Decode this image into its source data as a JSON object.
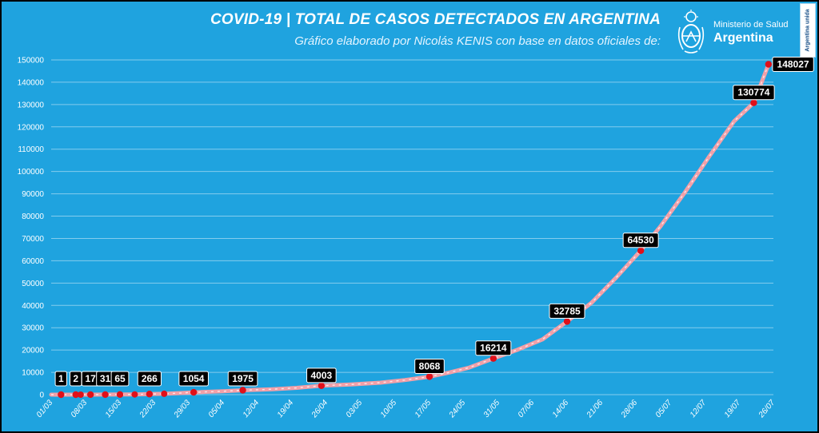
{
  "header": {
    "title": "COVID-19  |  TOTAL DE CASOS DETECTADOS EN ARGENTINA",
    "subtitle": "Gráfico elaborado por Nicolás KENIS con base en datos oficiales de:"
  },
  "logo": {
    "line1": "Ministerio de Salud",
    "line2": "Argentina",
    "icon": "national-coat-of-arms-icon",
    "badge": "Argentina unida"
  },
  "colors": {
    "background": "#1fa3df",
    "line": "#f2a0a8",
    "marker": "#e0101a",
    "label_box": "#000000"
  },
  "chart_data": {
    "type": "line",
    "x_axis": "date",
    "x_tick_labels": [
      "01/03",
      "08/03",
      "15/03",
      "22/03",
      "29/03",
      "05/04",
      "12/04",
      "19/04",
      "26/04",
      "03/05",
      "10/05",
      "17/05",
      "24/05",
      "31/05",
      "07/06",
      "14/06",
      "21/06",
      "28/06",
      "05/07",
      "12/07",
      "19/07",
      "26/07"
    ],
    "y_tick_labels": [
      "0",
      "10000",
      "20000",
      "30000",
      "40000",
      "50000",
      "60000",
      "70000",
      "80000",
      "90000",
      "100000",
      "110000",
      "120000",
      "130000",
      "140000",
      "150000"
    ],
    "ylim": [
      0,
      150000
    ],
    "grid": "horizontal",
    "legend": "none",
    "labeled_points": [
      {
        "date": "03/03",
        "value": 1
      },
      {
        "date": "06/03",
        "value": 2
      },
      {
        "date": "09/03",
        "value": 17
      },
      {
        "date": "12/03",
        "value": 31
      },
      {
        "date": "15/03",
        "value": 65
      },
      {
        "date": "21/03",
        "value": 266
      },
      {
        "date": "30/03",
        "value": 1054
      },
      {
        "date": "09/04",
        "value": 1975
      },
      {
        "date": "25/04",
        "value": 4003
      },
      {
        "date": "17/05",
        "value": 8068
      },
      {
        "date": "30/05",
        "value": 16214
      },
      {
        "date": "14/06",
        "value": 32785
      },
      {
        "date": "29/06",
        "value": 64530
      },
      {
        "date": "22/07",
        "value": 130774
      },
      {
        "date": "25/07",
        "value": 148027
      }
    ],
    "extra_markers": [
      {
        "date": "07/03",
        "value": 5
      },
      {
        "date": "18/03",
        "value": 97
      },
      {
        "date": "24/03",
        "value": 387
      }
    ],
    "series": [
      {
        "values": [
          {
            "date": "01/03",
            "value": 0
          },
          {
            "date": "03/03",
            "value": 1
          },
          {
            "date": "06/03",
            "value": 2
          },
          {
            "date": "07/03",
            "value": 5
          },
          {
            "date": "09/03",
            "value": 17
          },
          {
            "date": "12/03",
            "value": 31
          },
          {
            "date": "15/03",
            "value": 65
          },
          {
            "date": "18/03",
            "value": 97
          },
          {
            "date": "21/03",
            "value": 266
          },
          {
            "date": "24/03",
            "value": 387
          },
          {
            "date": "27/03",
            "value": 690
          },
          {
            "date": "30/03",
            "value": 1054
          },
          {
            "date": "05/04",
            "value": 1554
          },
          {
            "date": "09/04",
            "value": 1975
          },
          {
            "date": "15/04",
            "value": 2443
          },
          {
            "date": "20/04",
            "value": 3031
          },
          {
            "date": "25/04",
            "value": 4003
          },
          {
            "date": "01/05",
            "value": 4532
          },
          {
            "date": "07/05",
            "value": 5371
          },
          {
            "date": "12/05",
            "value": 6563
          },
          {
            "date": "17/05",
            "value": 8068
          },
          {
            "date": "21/05",
            "value": 9931
          },
          {
            "date": "25/05",
            "value": 12076
          },
          {
            "date": "30/05",
            "value": 16214
          },
          {
            "date": "04/06",
            "value": 20197
          },
          {
            "date": "09/06",
            "value": 24761
          },
          {
            "date": "14/06",
            "value": 32785
          },
          {
            "date": "19/06",
            "value": 41204
          },
          {
            "date": "24/06",
            "value": 52457
          },
          {
            "date": "29/06",
            "value": 64530
          },
          {
            "date": "03/07",
            "value": 75376
          },
          {
            "date": "08/07",
            "value": 90693
          },
          {
            "date": "13/07",
            "value": 106910
          },
          {
            "date": "18/07",
            "value": 122524
          },
          {
            "date": "22/07",
            "value": 130774
          },
          {
            "date": "25/07",
            "value": 148027
          }
        ]
      }
    ]
  }
}
